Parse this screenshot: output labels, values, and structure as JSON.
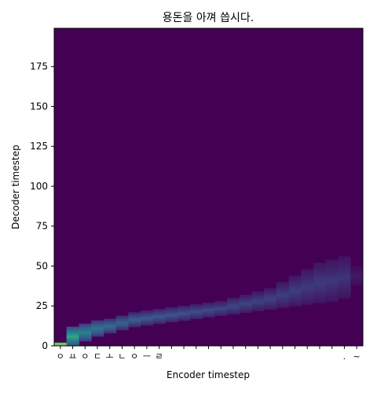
{
  "chart_data": {
    "type": "heatmap",
    "title": "용돈을 아껴 씁시다.",
    "xlabel": "Encoder timestep",
    "ylabel": "Decoder timestep",
    "x_tick_labels": [
      "ㅇ",
      "ㅛ",
      "ㅇ",
      "ㄷ",
      "ㅗ",
      "ㄴ",
      "ㅇ",
      "ㅡ",
      "ㄹ",
      "",
      "",
      "",
      "",
      "",
      "",
      "",
      "",
      "",
      "",
      "",
      "",
      "",
      "",
      ".",
      "~"
    ],
    "y_ticks": [
      0,
      25,
      50,
      75,
      100,
      125,
      150,
      175
    ],
    "xlim": [
      0,
      25
    ],
    "ylim": [
      0,
      199
    ],
    "colormap": "viridis",
    "background_color": "#440154",
    "attention_path": [
      {
        "enc": 0,
        "dec_start": 0,
        "dec_end": 2,
        "weight": 1.0
      },
      {
        "enc": 1,
        "dec_start": 0,
        "dec_end": 12,
        "weight": 0.6
      },
      {
        "enc": 2,
        "dec_start": 3,
        "dec_end": 14,
        "weight": 0.45
      },
      {
        "enc": 3,
        "dec_start": 6,
        "dec_end": 16,
        "weight": 0.4
      },
      {
        "enc": 4,
        "dec_start": 8,
        "dec_end": 17,
        "weight": 0.35
      },
      {
        "enc": 5,
        "dec_start": 10,
        "dec_end": 19,
        "weight": 0.32
      },
      {
        "enc": 6,
        "dec_start": 12,
        "dec_end": 21,
        "weight": 0.3
      },
      {
        "enc": 7,
        "dec_start": 13,
        "dec_end": 22,
        "weight": 0.28
      },
      {
        "enc": 8,
        "dec_start": 14,
        "dec_end": 23,
        "weight": 0.27
      },
      {
        "enc": 9,
        "dec_start": 15,
        "dec_end": 24,
        "weight": 0.26
      },
      {
        "enc": 10,
        "dec_start": 16,
        "dec_end": 25,
        "weight": 0.25
      },
      {
        "enc": 11,
        "dec_start": 17,
        "dec_end": 26,
        "weight": 0.24
      },
      {
        "enc": 12,
        "dec_start": 18,
        "dec_end": 27,
        "weight": 0.23
      },
      {
        "enc": 13,
        "dec_start": 19,
        "dec_end": 28,
        "weight": 0.22
      },
      {
        "enc": 14,
        "dec_start": 20,
        "dec_end": 30,
        "weight": 0.22
      },
      {
        "enc": 15,
        "dec_start": 21,
        "dec_end": 32,
        "weight": 0.21
      },
      {
        "enc": 16,
        "dec_start": 22,
        "dec_end": 34,
        "weight": 0.2
      },
      {
        "enc": 17,
        "dec_start": 23,
        "dec_end": 36,
        "weight": 0.2
      },
      {
        "enc": 18,
        "dec_start": 24,
        "dec_end": 40,
        "weight": 0.19
      },
      {
        "enc": 19,
        "dec_start": 25,
        "dec_end": 44,
        "weight": 0.19
      },
      {
        "enc": 20,
        "dec_start": 26,
        "dec_end": 48,
        "weight": 0.18
      },
      {
        "enc": 21,
        "dec_start": 27,
        "dec_end": 52,
        "weight": 0.18
      },
      {
        "enc": 22,
        "dec_start": 28,
        "dec_end": 54,
        "weight": 0.17
      },
      {
        "enc": 23,
        "dec_start": 30,
        "dec_end": 56,
        "weight": 0.16
      },
      {
        "enc": 24,
        "dec_start": 38,
        "dec_end": 50,
        "weight": 0.08
      }
    ]
  }
}
